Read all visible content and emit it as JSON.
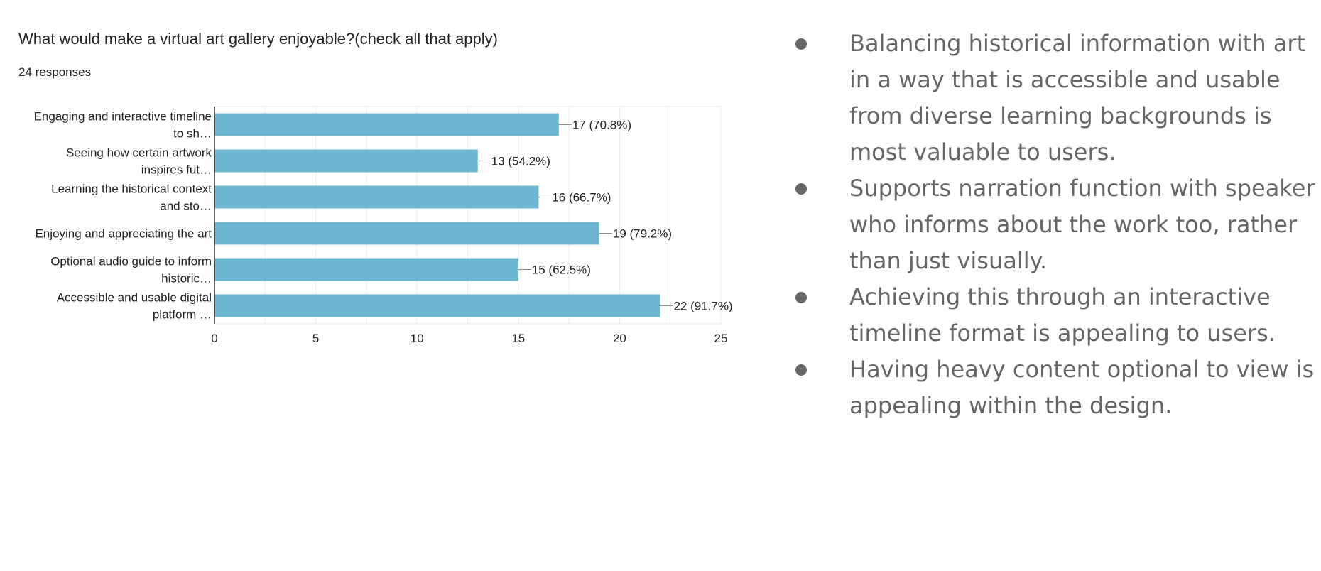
{
  "chart_data": {
    "type": "bar",
    "orientation": "horizontal",
    "title": "What would make a virtual art gallery enjoyable?(check all that apply)",
    "subtitle": "24 responses",
    "categories": [
      [
        "Engaging and interactive timeline",
        "to sh…"
      ],
      [
        "Seeing how certain artwork",
        "inspires fut…"
      ],
      [
        "Learning the historical context",
        "and sto…"
      ],
      [
        "Enjoying and appreciating the art"
      ],
      [
        "Optional audio guide to inform",
        "historic…"
      ],
      [
        "Accessible and usable digital",
        "platform …"
      ]
    ],
    "values": [
      17,
      13,
      16,
      19,
      15,
      22
    ],
    "data_labels": [
      "17 (70.8%)",
      "13 (54.2%)",
      "16 (66.7%)",
      "19 (79.2%)",
      "15 (62.5%)",
      "22 (91.7%)"
    ],
    "xlim": [
      0,
      25
    ],
    "xticks": [
      "0",
      "5",
      "10",
      "15",
      "20",
      "25"
    ],
    "grid": true,
    "bar_color": "#6bb7cf"
  },
  "bullets": [
    "Balancing historical information with art in a way that is accessible and usable from diverse learning backgrounds is most valuable to users.",
    "Supports narration function with speaker who informs about the work too, rather than just visually.",
    "Achieving this through an interactive timeline format is appealing to users.",
    "Having heavy content optional to view is appealing within the design."
  ]
}
